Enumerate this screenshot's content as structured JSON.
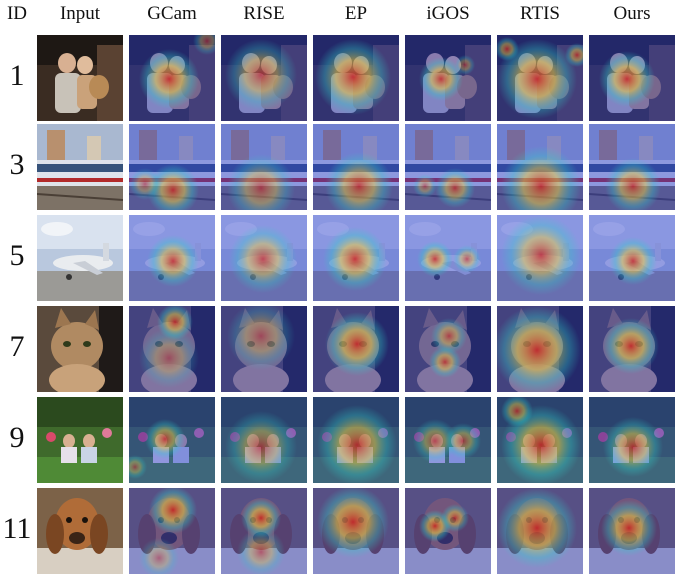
{
  "figure": {
    "columns": [
      "ID",
      "Input",
      "GCam",
      "RISE",
      "EP",
      "iGOS",
      "RTIS",
      "Ours"
    ],
    "rows": [
      {
        "id": "1",
        "scene": "two children holding a toy on a couch"
      },
      {
        "id": "3",
        "scene": "passenger train at a station"
      },
      {
        "id": "5",
        "scene": "airplane on tarmac"
      },
      {
        "id": "7",
        "scene": "tabby cat"
      },
      {
        "id": "9",
        "scene": "two children sitting in a garden"
      },
      {
        "id": "11",
        "scene": "basset hound dog"
      }
    ]
  },
  "colors": {
    "heat_low": "#2a3bd0",
    "heat_mid": "#2fd0c8",
    "heat_warm": "#f2d23a",
    "heat_high": "#d0201a"
  }
}
